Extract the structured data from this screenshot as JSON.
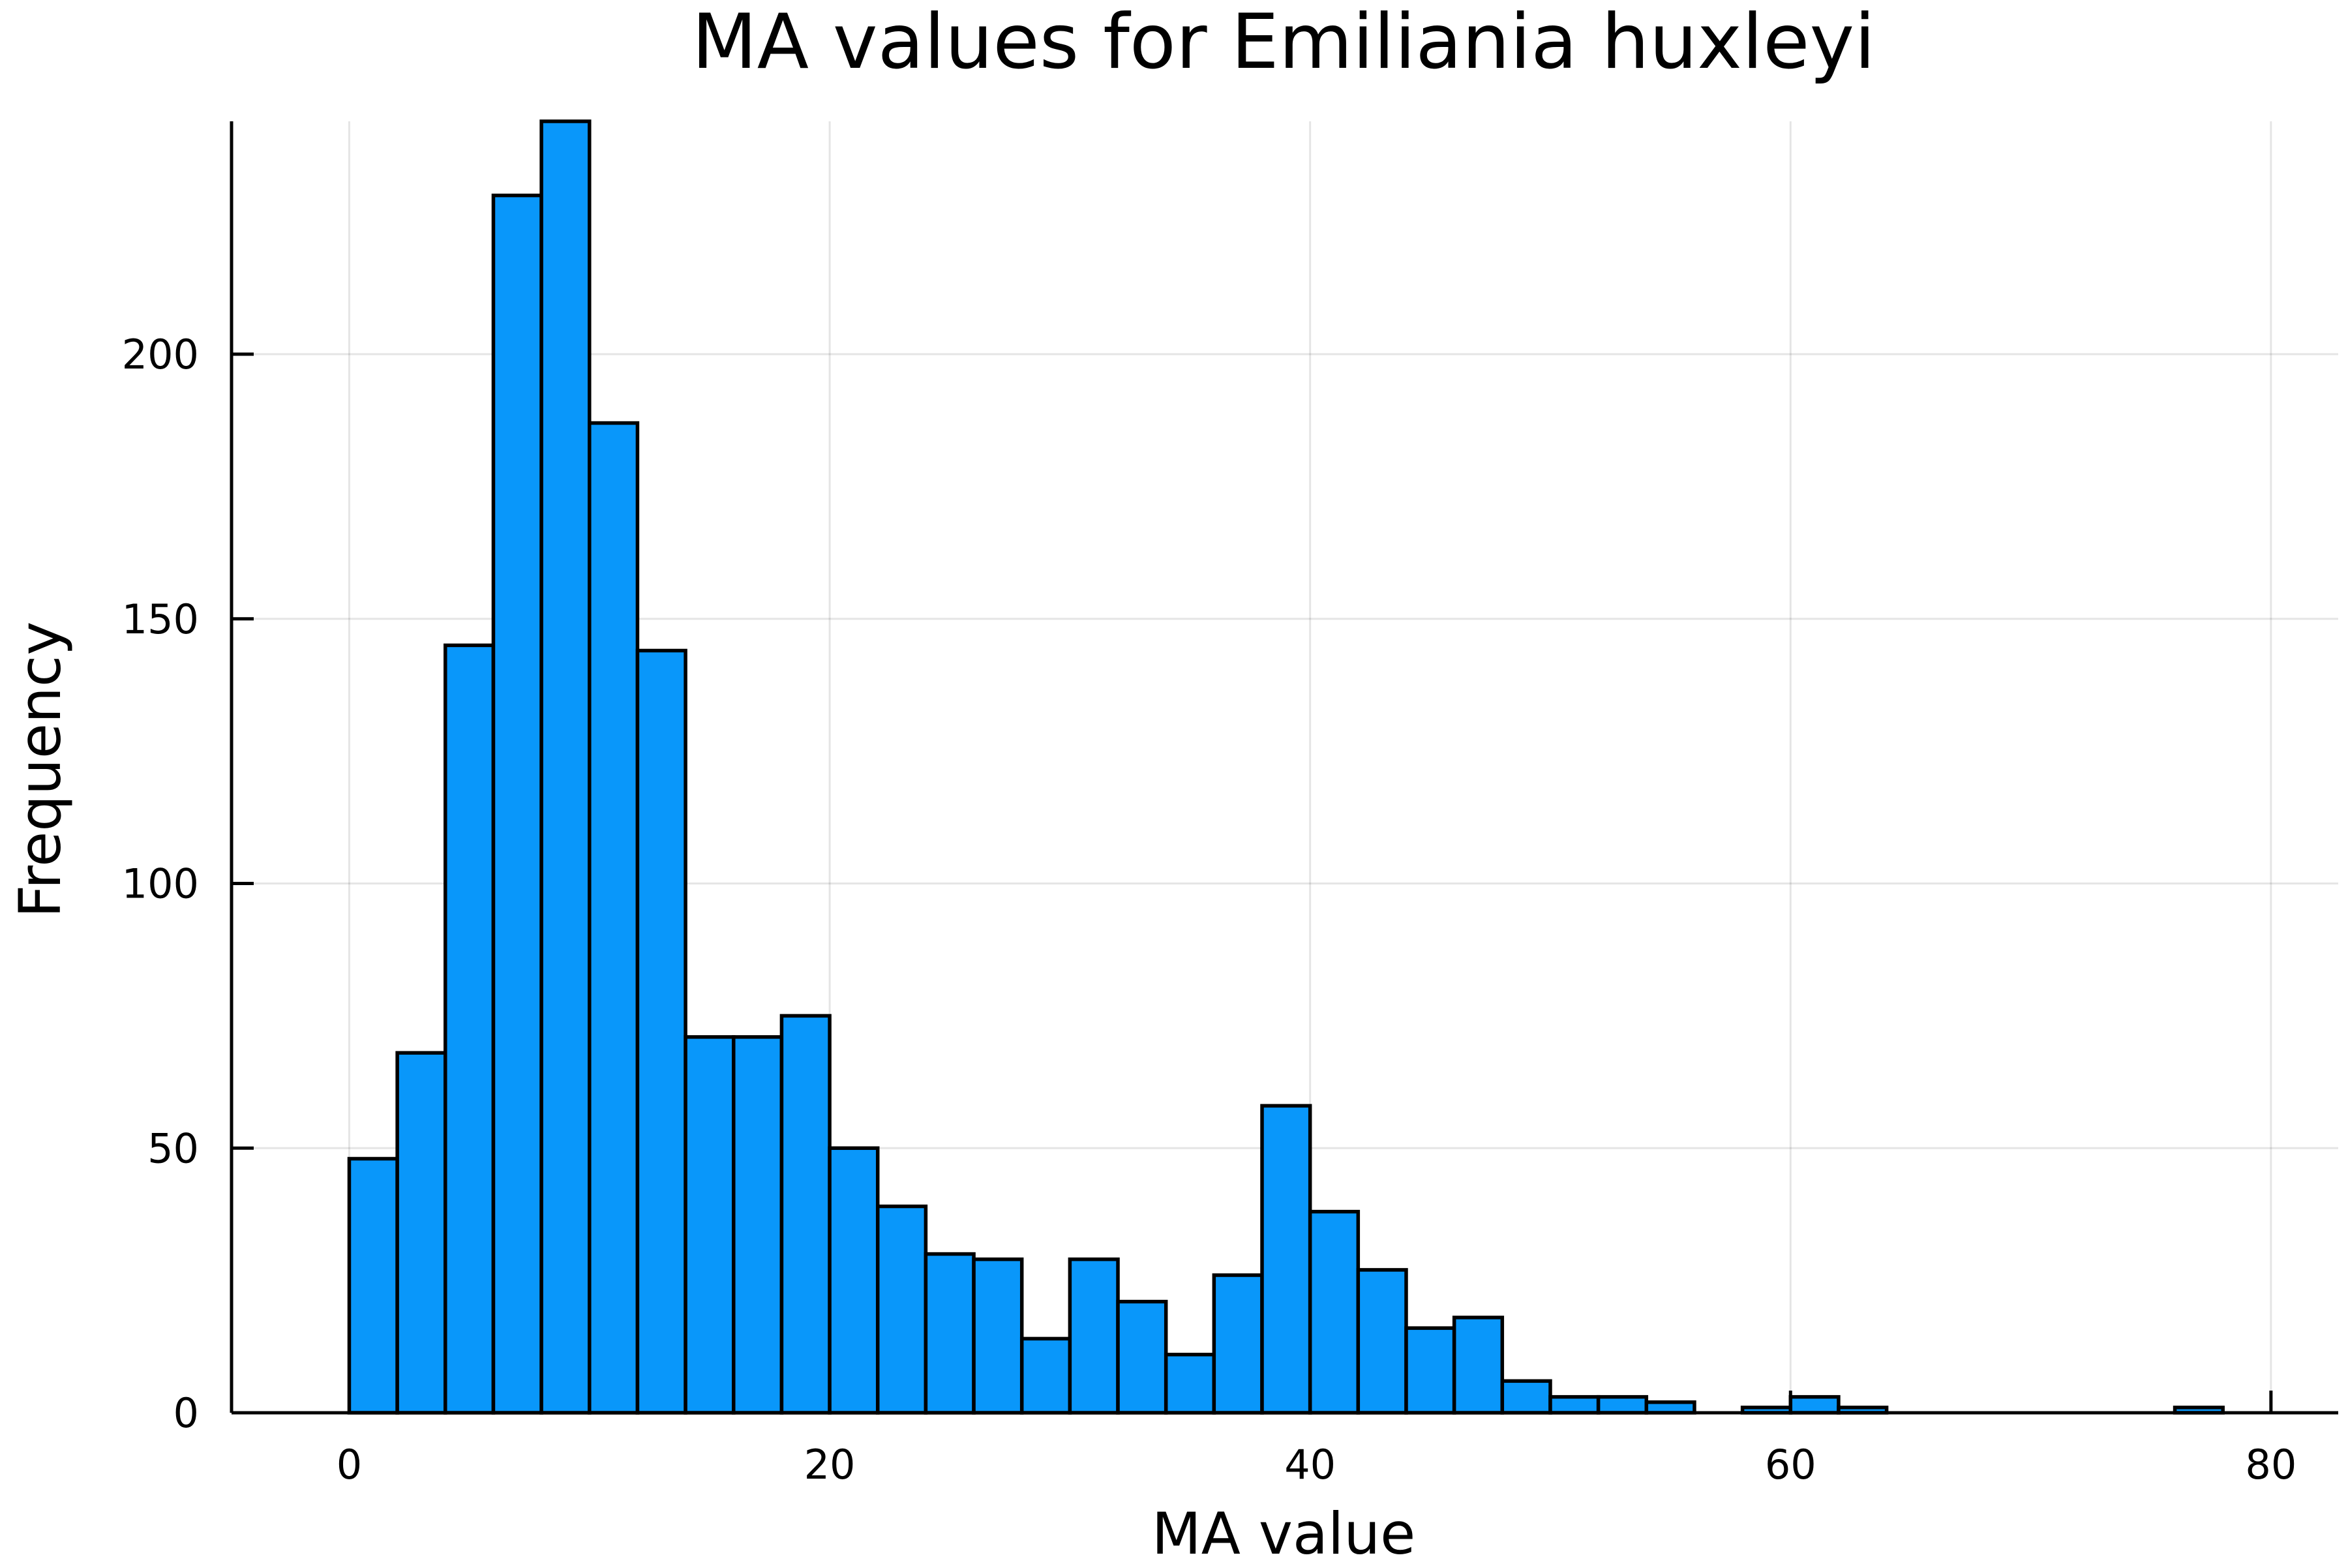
{
  "chart_data": {
    "type": "bar",
    "title": "MA values for Emiliania huxleyi",
    "xlabel": "MA value",
    "ylabel": "Frequency",
    "bin_width": 2,
    "bin_edges_start": [
      0,
      2,
      4,
      6,
      8,
      10,
      12,
      14,
      16,
      18,
      20,
      22,
      24,
      26,
      28,
      30,
      32,
      34,
      36,
      38,
      40,
      42,
      44,
      46,
      48,
      50,
      52,
      54,
      56,
      58,
      60,
      62,
      64,
      66,
      68,
      70,
      72,
      74,
      76
    ],
    "values": [
      48,
      68,
      145,
      230,
      244,
      187,
      144,
      71,
      71,
      75,
      50,
      39,
      30,
      29,
      14,
      29,
      21,
      11,
      26,
      58,
      38,
      27,
      16,
      18,
      6,
      3,
      3,
      2,
      0,
      1,
      3,
      1,
      0,
      0,
      0,
      0,
      0,
      0,
      1
    ],
    "xlim": [
      -4.9,
      82.8
    ],
    "ylim": [
      0,
      244
    ],
    "xticks": [
      0,
      20,
      40,
      60,
      80
    ],
    "xtick_labels": [
      "0",
      "20",
      "40",
      "60",
      "80"
    ],
    "yticks": [
      0,
      50,
      100,
      150,
      200
    ],
    "ytick_labels": [
      "0",
      "50",
      "100",
      "150",
      "200"
    ],
    "grid": true,
    "legend": "none",
    "bar_color": "#0997fa",
    "edge_color": "#000000"
  }
}
